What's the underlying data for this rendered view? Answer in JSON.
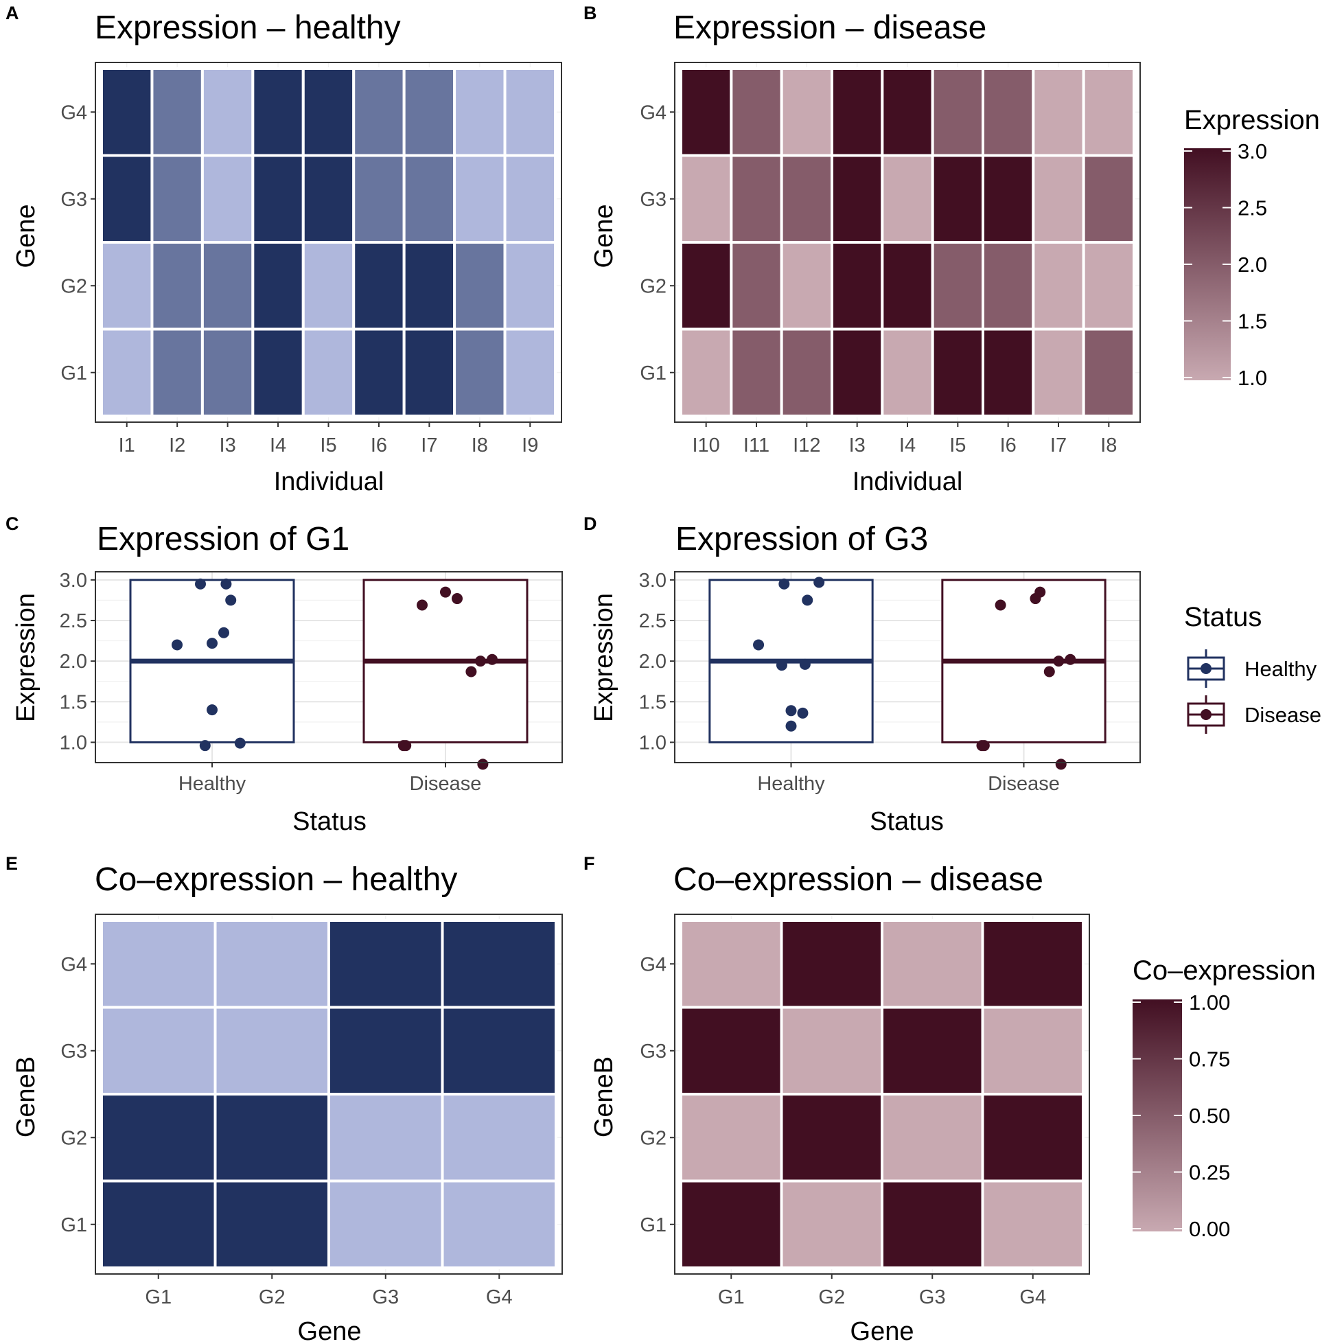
{
  "colors": {
    "healthy_low": "#afb7dc",
    "healthy_high": "#213260",
    "disease_low": "#c8a9b1",
    "disease_high": "#420f22"
  },
  "chart_data": [
    {
      "id": "A",
      "panel_label": "A",
      "type": "heatmap",
      "palette": "healthy",
      "title": "Expression – healthy",
      "xlabel": "Individual",
      "ylabel": "Gene",
      "x": [
        "I1",
        "I2",
        "I3",
        "I4",
        "I5",
        "I6",
        "I7",
        "I8",
        "I9"
      ],
      "y": [
        "G1",
        "G2",
        "G3",
        "G4"
      ],
      "values": [
        [
          1.0,
          2.0,
          2.0,
          3.0,
          1.0,
          3.0,
          3.0,
          2.0,
          1.0
        ],
        [
          1.0,
          2.0,
          2.0,
          3.0,
          1.0,
          3.0,
          3.0,
          2.0,
          1.0
        ],
        [
          3.0,
          2.0,
          1.0,
          3.0,
          3.0,
          2.0,
          2.0,
          1.0,
          1.0
        ],
        [
          3.0,
          2.0,
          1.0,
          3.0,
          3.0,
          2.0,
          2.0,
          1.0,
          1.0
        ]
      ],
      "vmin": 1.0,
      "vmax": 3.0
    },
    {
      "id": "B",
      "panel_label": "B",
      "type": "heatmap",
      "palette": "disease",
      "title": "Expression – disease",
      "xlabel": "Individual",
      "ylabel": "Gene",
      "x": [
        "I10",
        "I11",
        "I12",
        "I3",
        "I4",
        "I5",
        "I6",
        "I7",
        "I8"
      ],
      "y": [
        "G1",
        "G2",
        "G3",
        "G4"
      ],
      "values": [
        [
          1.0,
          2.0,
          2.0,
          3.0,
          1.0,
          3.0,
          3.0,
          1.0,
          2.0
        ],
        [
          3.0,
          2.0,
          1.0,
          3.0,
          3.0,
          2.0,
          2.0,
          1.0,
          1.0
        ],
        [
          1.0,
          2.0,
          2.0,
          3.0,
          1.0,
          3.0,
          3.0,
          1.0,
          2.0
        ],
        [
          3.0,
          2.0,
          1.0,
          3.0,
          3.0,
          2.0,
          2.0,
          1.0,
          1.0
        ]
      ],
      "vmin": 1.0,
      "vmax": 3.0
    },
    {
      "id": "C",
      "panel_label": "C",
      "type": "box",
      "title": "Expression of G1",
      "xlabel": "Status",
      "ylabel": "Expression",
      "categories": [
        "Healthy",
        "Disease"
      ],
      "ylim": [
        0.75,
        3.1
      ],
      "yticks": [
        1.0,
        1.5,
        2.0,
        2.5,
        3.0
      ],
      "boxes": [
        {
          "category": "Healthy",
          "min": 1.0,
          "q1": 1.0,
          "median": 2.0,
          "q3": 3.0,
          "max": 3.0
        },
        {
          "category": "Disease",
          "min": 1.0,
          "q1": 1.0,
          "median": 2.0,
          "q3": 3.0,
          "max": 3.0
        }
      ],
      "points": [
        {
          "category": "Healthy",
          "values": [
            2.95,
            2.95,
            2.75,
            2.35,
            2.2,
            2.22,
            1.4,
            0.96,
            0.99
          ],
          "jitter": [
            -0.05,
            0.06,
            0.08,
            0.05,
            -0.15,
            0.0,
            0.0,
            -0.03,
            0.12
          ]
        },
        {
          "category": "Disease",
          "values": [
            2.85,
            2.77,
            2.69,
            2.0,
            2.02,
            1.87,
            0.96,
            0.96,
            0.73
          ],
          "jitter": [
            0.0,
            0.05,
            -0.1,
            0.15,
            0.2,
            0.11,
            -0.18,
            -0.17,
            0.16
          ]
        }
      ]
    },
    {
      "id": "D",
      "panel_label": "D",
      "type": "box",
      "title": "Expression of G3",
      "xlabel": "Status",
      "ylabel": "Expression",
      "categories": [
        "Healthy",
        "Disease"
      ],
      "ylim": [
        0.75,
        3.1
      ],
      "yticks": [
        1.0,
        1.5,
        2.0,
        2.5,
        3.0
      ],
      "boxes": [
        {
          "category": "Healthy",
          "min": 1.0,
          "q1": 1.0,
          "median": 2.0,
          "q3": 3.0,
          "max": 3.0
        },
        {
          "category": "Disease",
          "min": 1.0,
          "q1": 1.0,
          "median": 2.0,
          "q3": 3.0,
          "max": 3.0
        }
      ],
      "points": [
        {
          "category": "Healthy",
          "values": [
            2.95,
            2.97,
            2.75,
            2.2,
            1.95,
            1.96,
            1.39,
            1.36,
            1.2
          ],
          "jitter": [
            -0.03,
            0.12,
            0.07,
            -0.14,
            -0.04,
            0.06,
            0.0,
            0.05,
            0.0
          ]
        },
        {
          "category": "Disease",
          "values": [
            2.85,
            2.77,
            2.69,
            2.0,
            2.02,
            1.87,
            0.96,
            0.96,
            0.73
          ],
          "jitter": [
            0.07,
            0.05,
            -0.1,
            0.15,
            0.2,
            0.11,
            -0.18,
            -0.17,
            0.16
          ]
        }
      ]
    },
    {
      "id": "E",
      "panel_label": "E",
      "type": "heatmap",
      "palette": "healthy",
      "title": "Co–expression – healthy",
      "xlabel": "Gene",
      "ylabel": "GeneB",
      "x": [
        "G1",
        "G2",
        "G3",
        "G4"
      ],
      "y": [
        "G1",
        "G2",
        "G3",
        "G4"
      ],
      "values": [
        [
          1.0,
          1.0,
          0.0,
          0.0
        ],
        [
          1.0,
          1.0,
          0.0,
          0.0
        ],
        [
          0.0,
          0.0,
          1.0,
          1.0
        ],
        [
          0.0,
          0.0,
          1.0,
          1.0
        ]
      ],
      "vmin": 0.0,
      "vmax": 1.0
    },
    {
      "id": "F",
      "panel_label": "F",
      "type": "heatmap",
      "palette": "disease",
      "title": "Co–expression – disease",
      "xlabel": "Gene",
      "ylabel": "GeneB",
      "x": [
        "G1",
        "G2",
        "G3",
        "G4"
      ],
      "y": [
        "G1",
        "G2",
        "G3",
        "G4"
      ],
      "values": [
        [
          1.0,
          0.0,
          1.0,
          0.0
        ],
        [
          0.0,
          1.0,
          0.0,
          1.0
        ],
        [
          1.0,
          0.0,
          1.0,
          0.0
        ],
        [
          0.0,
          1.0,
          0.0,
          1.0
        ]
      ],
      "vmin": 0.0,
      "vmax": 1.0
    }
  ],
  "legends": {
    "expression": {
      "title": "Expression",
      "labels": [
        "3.0",
        "2.5",
        "2.0",
        "1.5",
        "1.0"
      ],
      "values": [
        3.0,
        2.5,
        2.0,
        1.5,
        1.0
      ],
      "vmin": 1.0,
      "vmax": 3.0
    },
    "status": {
      "title": "Status",
      "items": [
        {
          "label": "Healthy",
          "palette": "healthy"
        },
        {
          "label": "Disease",
          "palette": "disease"
        }
      ]
    },
    "coexpression": {
      "title": "Co–expression",
      "labels": [
        "1.00",
        "0.75",
        "0.50",
        "0.25",
        "0.00"
      ],
      "values": [
        1.0,
        0.75,
        0.5,
        0.25,
        0.0
      ],
      "vmin": 0.0,
      "vmax": 1.0
    }
  }
}
